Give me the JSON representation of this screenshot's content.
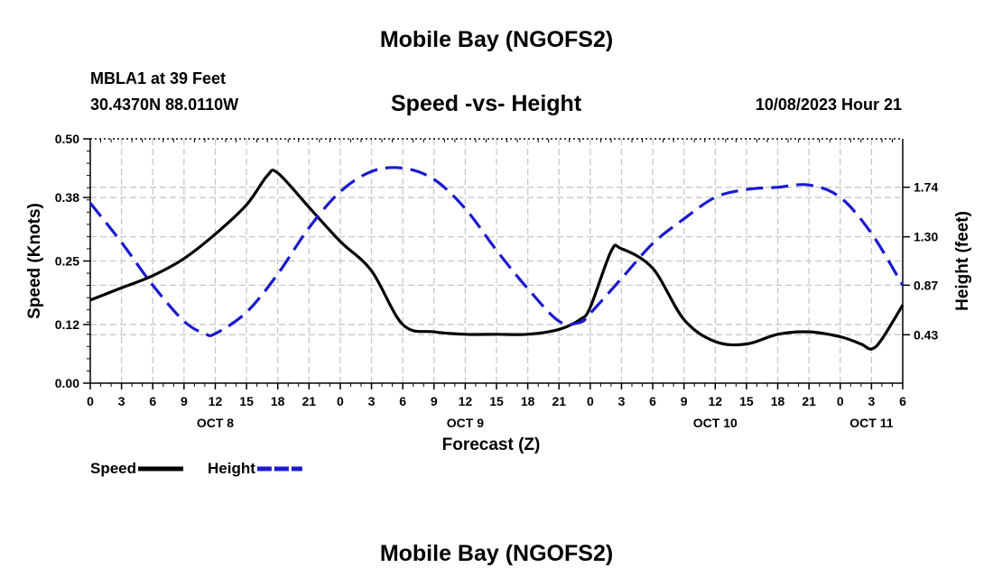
{
  "page": {
    "title_top": "Mobile Bay (NGOFS2)",
    "title_bottom": "Mobile Bay (NGOFS2)",
    "station": "MBLA1 at 39 Feet",
    "coords": "30.4370N  88.0110W",
    "datetime": "10/08/2023 Hour 21"
  },
  "chart_data": {
    "type": "line",
    "title": "Speed -vs- Height",
    "xlabel": "Forecast (Z)",
    "ylabel_left": "Speed (Knots)",
    "ylabel_right": "Height (feet)",
    "x_range": [
      0,
      78
    ],
    "x_unit": "hours from Oct 8 00Z",
    "x_ticks": [
      0,
      3,
      6,
      9,
      12,
      15,
      18,
      21,
      24,
      27,
      30,
      33,
      36,
      39,
      42,
      45,
      48,
      51,
      54,
      57,
      60,
      63,
      66,
      69,
      72,
      75,
      78
    ],
    "x_tick_labels": [
      "0",
      "3",
      "6",
      "9",
      "12",
      "15",
      "18",
      "21",
      "0",
      "3",
      "6",
      "9",
      "12",
      "15",
      "18",
      "21",
      "0",
      "3",
      "6",
      "9",
      "12",
      "15",
      "18",
      "21",
      "0",
      "3",
      "6"
    ],
    "date_labels": [
      {
        "text": "OCT 8",
        "x": 12
      },
      {
        "text": "OCT 9",
        "x": 36
      },
      {
        "text": "OCT 10",
        "x": 60
      },
      {
        "text": "OCT 11",
        "x": 75
      }
    ],
    "y_left": {
      "range": [
        0,
        0.5
      ],
      "ticks": [
        0,
        0.12,
        0.25,
        0.38,
        0.5
      ],
      "tick_labels": [
        "0.00",
        "0.12",
        "0.25",
        "0.38",
        "0.50"
      ]
    },
    "y_right": {
      "range": [
        0,
        2.17
      ],
      "ticks": [
        0.43,
        0.87,
        1.3,
        1.74
      ],
      "tick_labels": [
        "0.43",
        "0.87",
        "1.30",
        "1.74"
      ]
    },
    "series": [
      {
        "name": "Speed",
        "axis": "left",
        "color": "#000000",
        "dash": "solid",
        "x": [
          0,
          3,
          6,
          9,
          12,
          15,
          17,
          18,
          21,
          24,
          27,
          30,
          33,
          36,
          39,
          42,
          45,
          47,
          48,
          50,
          51,
          54,
          57,
          60,
          63,
          66,
          69,
          72,
          74,
          75,
          76,
          78
        ],
        "y": [
          0.17,
          0.195,
          0.22,
          0.255,
          0.305,
          0.365,
          0.425,
          0.43,
          0.36,
          0.29,
          0.23,
          0.12,
          0.105,
          0.1,
          0.1,
          0.1,
          0.11,
          0.13,
          0.155,
          0.27,
          0.275,
          0.235,
          0.13,
          0.085,
          0.08,
          0.1,
          0.105,
          0.095,
          0.08,
          0.07,
          0.09,
          0.16
        ]
      },
      {
        "name": "Height",
        "axis": "right",
        "color": "#1a1ad0",
        "dash": "dashed",
        "x": [
          0,
          3,
          6,
          9,
          11,
          12,
          15,
          18,
          21,
          24,
          27,
          30,
          33,
          36,
          39,
          42,
          45,
          47,
          48,
          51,
          54,
          57,
          60,
          63,
          66,
          69,
          72,
          75,
          78
        ],
        "y": [
          1.6,
          1.25,
          0.87,
          0.55,
          0.44,
          0.44,
          0.63,
          0.97,
          1.38,
          1.7,
          1.88,
          1.91,
          1.81,
          1.55,
          1.18,
          0.84,
          0.55,
          0.54,
          0.62,
          0.93,
          1.24,
          1.46,
          1.65,
          1.72,
          1.74,
          1.76,
          1.65,
          1.33,
          0.87
        ]
      }
    ],
    "legend": [
      {
        "label": "Speed",
        "color": "#000000",
        "dash": "solid"
      },
      {
        "label": "Height",
        "color": "#1a1ad0",
        "dash": "dashed"
      }
    ]
  }
}
